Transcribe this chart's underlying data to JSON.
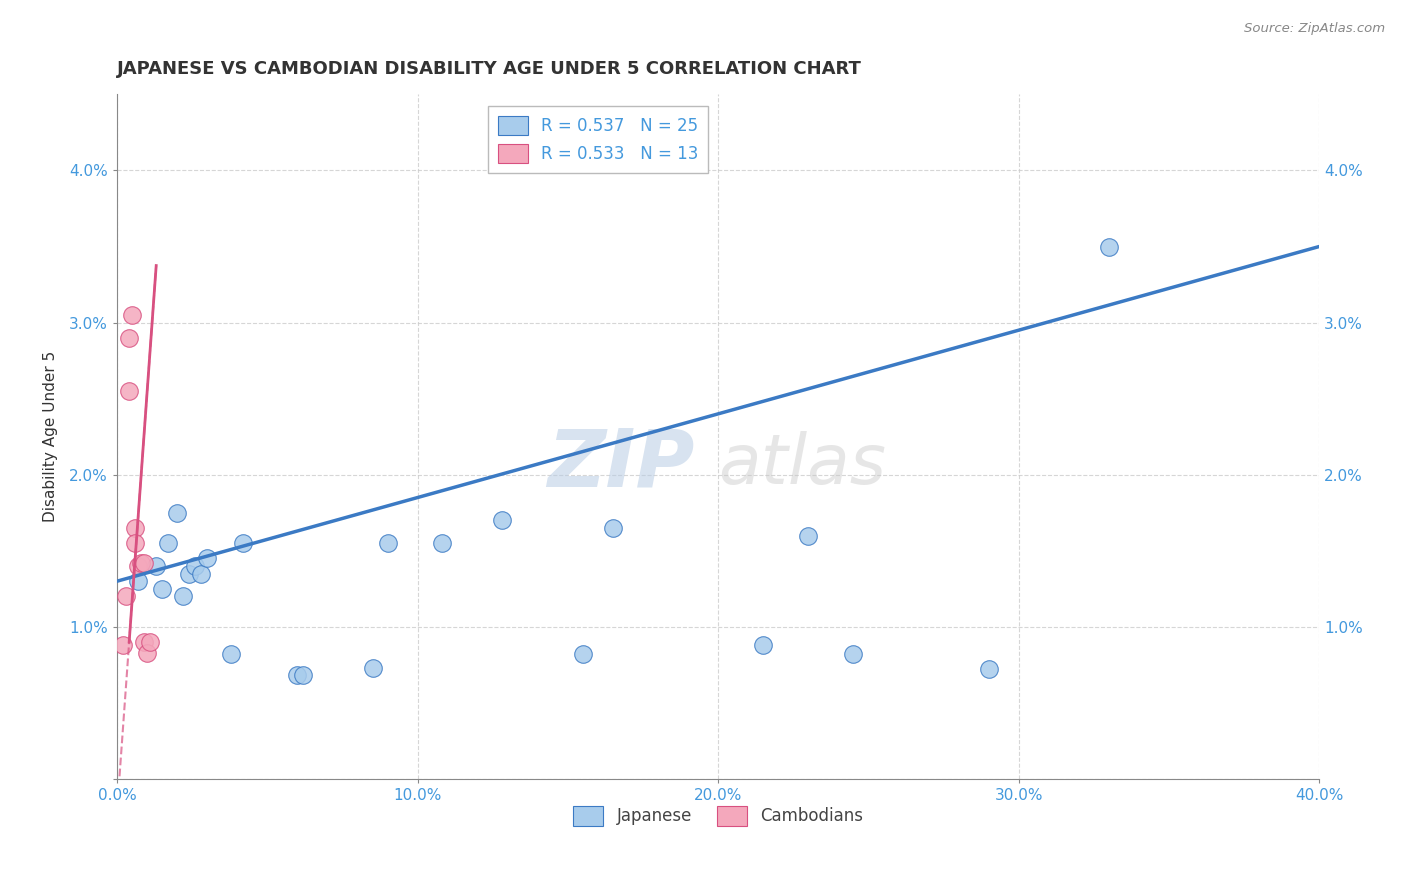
{
  "title": "JAPANESE VS CAMBODIAN DISABILITY AGE UNDER 5 CORRELATION CHART",
  "source": "Source: ZipAtlas.com",
  "ylabel": "Disability Age Under 5",
  "xlabel": "",
  "watermark_zip": "ZIP",
  "watermark_atlas": "atlas",
  "xlim": [
    0.0,
    0.4
  ],
  "ylim": [
    0.0,
    0.045
  ],
  "xticks": [
    0.0,
    0.1,
    0.2,
    0.3,
    0.4
  ],
  "xtick_labels": [
    "0.0%",
    "10.0%",
    "20.0%",
    "30.0%",
    "40.0%"
  ],
  "yticks": [
    0.0,
    0.01,
    0.02,
    0.03,
    0.04
  ],
  "ytick_labels": [
    "",
    "1.0%",
    "2.0%",
    "3.0%",
    "4.0%"
  ],
  "japanese_color": "#A8CCEC",
  "cambodian_color": "#F4A8BC",
  "trendline_japanese_color": "#3B7AC4",
  "trendline_cambodian_color": "#D85080",
  "R_japanese": 0.537,
  "N_japanese": 25,
  "R_cambodian": 0.533,
  "N_cambodian": 13,
  "japanese_x": [
    0.007,
    0.013,
    0.015,
    0.017,
    0.02,
    0.022,
    0.024,
    0.026,
    0.028,
    0.03,
    0.038,
    0.042,
    0.06,
    0.062,
    0.085,
    0.09,
    0.108,
    0.128,
    0.155,
    0.165,
    0.215,
    0.23,
    0.245,
    0.29,
    0.33
  ],
  "japanese_y": [
    0.013,
    0.014,
    0.0125,
    0.0155,
    0.0175,
    0.012,
    0.0135,
    0.014,
    0.0135,
    0.0145,
    0.0082,
    0.0155,
    0.0068,
    0.0068,
    0.0073,
    0.0155,
    0.0155,
    0.017,
    0.0082,
    0.0165,
    0.0088,
    0.016,
    0.0082,
    0.0072,
    0.035
  ],
  "cambodian_x": [
    0.002,
    0.003,
    0.004,
    0.004,
    0.005,
    0.006,
    0.006,
    0.007,
    0.008,
    0.009,
    0.009,
    0.01,
    0.011
  ],
  "cambodian_y": [
    0.0088,
    0.012,
    0.0255,
    0.029,
    0.0305,
    0.0165,
    0.0155,
    0.014,
    0.0142,
    0.0142,
    0.009,
    0.0083,
    0.009
  ],
  "background_color": "#FFFFFF",
  "grid_color": "#CCCCCC",
  "title_color": "#333333",
  "axis_label_color": "#4499DD",
  "legend_text_color": "#4499DD"
}
